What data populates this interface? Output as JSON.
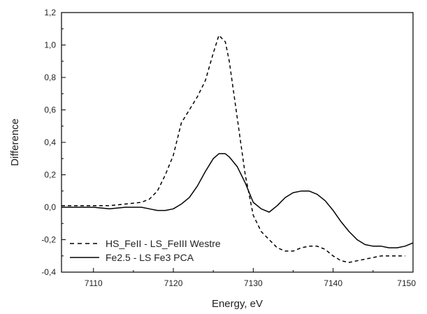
{
  "chart_data": {
    "type": "line",
    "title": "",
    "xlabel": "Energy, eV",
    "ylabel": "Difference",
    "xlim": [
      7106,
      7150
    ],
    "ylim": [
      -0.4,
      1.2
    ],
    "x_ticks": [
      7110,
      7120,
      7130,
      7140,
      7150
    ],
    "x_tick_labels": [
      "7110",
      "7120",
      "7130",
      "7140",
      "7150"
    ],
    "y_ticks": [
      -0.4,
      -0.2,
      0.0,
      0.2,
      0.4,
      0.6,
      0.8,
      1.0,
      1.2
    ],
    "y_tick_labels": [
      "-0,4",
      "-0,2",
      "0,0",
      "0,2",
      "0,4",
      "0,6",
      "0,8",
      "1,0",
      "1,2"
    ],
    "grid": false,
    "legend_position": "bottom-left",
    "series": [
      {
        "name": "HS_FeII - LS_FeIII Westre",
        "style": "dashed",
        "color": "#000000",
        "points": [
          [
            7106,
            0.01
          ],
          [
            7108,
            0.01
          ],
          [
            7110,
            0.01
          ],
          [
            7112,
            0.01
          ],
          [
            7114,
            0.02
          ],
          [
            7116,
            0.03
          ],
          [
            7117,
            0.05
          ],
          [
            7118,
            0.1
          ],
          [
            7119,
            0.2
          ],
          [
            7120,
            0.32
          ],
          [
            7121,
            0.52
          ],
          [
            7122,
            0.6
          ],
          [
            7123,
            0.68
          ],
          [
            7124,
            0.78
          ],
          [
            7125,
            0.95
          ],
          [
            7125.7,
            1.06
          ],
          [
            7126.5,
            1.02
          ],
          [
            7127,
            0.9
          ],
          [
            7128,
            0.55
          ],
          [
            7129,
            0.2
          ],
          [
            7130,
            -0.05
          ],
          [
            7131,
            -0.15
          ],
          [
            7132,
            -0.2
          ],
          [
            7133,
            -0.25
          ],
          [
            7134,
            -0.27
          ],
          [
            7135,
            -0.27
          ],
          [
            7136,
            -0.25
          ],
          [
            7137,
            -0.24
          ],
          [
            7138,
            -0.24
          ],
          [
            7139,
            -0.26
          ],
          [
            7140,
            -0.3
          ],
          [
            7141,
            -0.33
          ],
          [
            7142,
            -0.34
          ],
          [
            7143,
            -0.33
          ],
          [
            7144,
            -0.32
          ],
          [
            7145,
            -0.31
          ],
          [
            7146,
            -0.3
          ],
          [
            7147,
            -0.3
          ],
          [
            7148,
            -0.3
          ],
          [
            7149,
            -0.3
          ]
        ]
      },
      {
        "name": "Fe2.5 - LS Fe3 PCA",
        "style": "solid",
        "color": "#000000",
        "points": [
          [
            7106,
            0.0
          ],
          [
            7108,
            0.0
          ],
          [
            7110,
            0.0
          ],
          [
            7112,
            -0.01
          ],
          [
            7114,
            0.0
          ],
          [
            7116,
            0.0
          ],
          [
            7117,
            -0.01
          ],
          [
            7118,
            -0.02
          ],
          [
            7119,
            -0.02
          ],
          [
            7120,
            -0.01
          ],
          [
            7121,
            0.02
          ],
          [
            7122,
            0.06
          ],
          [
            7123,
            0.13
          ],
          [
            7124,
            0.22
          ],
          [
            7125,
            0.3
          ],
          [
            7125.7,
            0.33
          ],
          [
            7126.5,
            0.33
          ],
          [
            7127,
            0.31
          ],
          [
            7128,
            0.25
          ],
          [
            7129,
            0.15
          ],
          [
            7130,
            0.03
          ],
          [
            7131,
            -0.01
          ],
          [
            7132,
            -0.03
          ],
          [
            7133,
            0.01
          ],
          [
            7134,
            0.06
          ],
          [
            7135,
            0.09
          ],
          [
            7136,
            0.1
          ],
          [
            7137,
            0.1
          ],
          [
            7138,
            0.08
          ],
          [
            7139,
            0.04
          ],
          [
            7140,
            -0.02
          ],
          [
            7141,
            -0.09
          ],
          [
            7142,
            -0.15
          ],
          [
            7143,
            -0.2
          ],
          [
            7144,
            -0.23
          ],
          [
            7145,
            -0.24
          ],
          [
            7146,
            -0.24
          ],
          [
            7147,
            -0.25
          ],
          [
            7148,
            -0.25
          ],
          [
            7149,
            -0.24
          ],
          [
            7150,
            -0.22
          ]
        ]
      }
    ]
  }
}
